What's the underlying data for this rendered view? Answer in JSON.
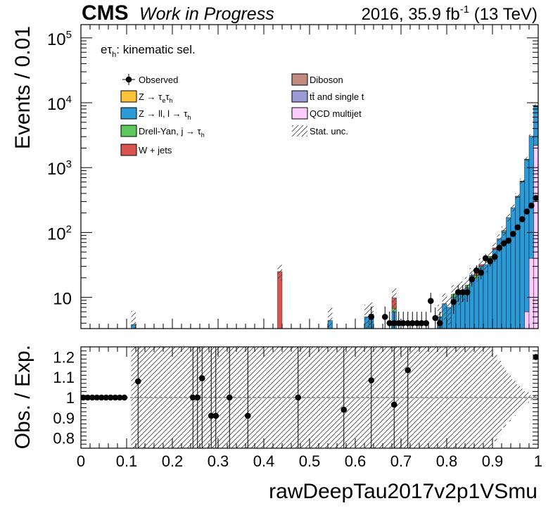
{
  "header": {
    "experiment": "CMS",
    "status": "Work in Progress",
    "lumi_prefix": "2016, 35.9 fb",
    "lumi_exp": "-1",
    "lumi_suffix": "(13 TeV)"
  },
  "chart_data": [
    {
      "type": "bar",
      "subtype": "stacked-histogram",
      "ylabel": "Events / 0.01",
      "yscale": "log",
      "ylim": [
        3.3,
        160000
      ],
      "xlim": [
        0,
        1
      ],
      "annotation": {
        "prefix": "eτ",
        "sub": "h",
        "suffix": ": kinematic sel."
      },
      "y_ticks": [
        {
          "v": 100000,
          "base": "10",
          "exp": "5"
        },
        {
          "v": 10000,
          "base": "10",
          "exp": "4"
        },
        {
          "v": 1000,
          "base": "10",
          "exp": "3"
        },
        {
          "v": 100,
          "base": "10",
          "exp": "2"
        },
        {
          "v": 10,
          "base": "10",
          "exp": ""
        }
      ],
      "legend": [
        {
          "key": "observed",
          "label": "Observed",
          "kind": "marker"
        },
        {
          "key": "ztt",
          "label": "Z → τ",
          "sub1": "e",
          "mid": "τ",
          "sub2": "h",
          "color": "#fdc23a"
        },
        {
          "key": "zll",
          "label": "Z → ll, l → τ",
          "sub2": "h",
          "color": "#2b9ad6"
        },
        {
          "key": "dy",
          "label": "Drell-Yan, j → τ",
          "sub2": "h",
          "color": "#5dc85d"
        },
        {
          "key": "wjets",
          "label": "W + jets",
          "color": "#d9534f"
        },
        {
          "key": "diboson",
          "label": "Diboson",
          "color": "#c28b7f"
        },
        {
          "key": "ttbar",
          "label": "tt̄ and single t",
          "color": "#9a9ad6"
        },
        {
          "key": "qcd",
          "label": "QCD multijet",
          "color": "#ffccff"
        },
        {
          "key": "unc",
          "label": "Stat. unc.",
          "kind": "hatch"
        }
      ],
      "series": [
        {
          "name": "QCD multijet",
          "key": "qcd",
          "bins": [
            [
              0.97,
              6
            ],
            [
              0.98,
              40
            ],
            [
              0.99,
              2200
            ]
          ]
        },
        {
          "name": "Z → ll, l → τ",
          "key": "zll",
          "bins": [
            [
              0.11,
              3.8
            ],
            [
              0.54,
              4.4
            ],
            [
              0.62,
              5
            ],
            [
              0.63,
              5.5
            ],
            [
              0.68,
              6
            ],
            [
              0.78,
              5
            ],
            [
              0.79,
              8
            ],
            [
              0.8,
              7
            ],
            [
              0.81,
              10
            ],
            [
              0.82,
              12
            ],
            [
              0.83,
              13
            ],
            [
              0.84,
              14
            ],
            [
              0.85,
              22
            ],
            [
              0.86,
              20
            ],
            [
              0.87,
              30
            ],
            [
              0.88,
              32
            ],
            [
              0.89,
              40
            ],
            [
              0.9,
              55
            ],
            [
              0.91,
              80
            ],
            [
              0.92,
              100
            ],
            [
              0.93,
              170
            ],
            [
              0.94,
              240
            ],
            [
              0.95,
              350
            ],
            [
              0.96,
              600
            ],
            [
              0.97,
              1300
            ],
            [
              0.98,
              3000
            ],
            [
              0.99,
              6500
            ]
          ]
        },
        {
          "name": "Drell-Yan, j → τ",
          "key": "dy",
          "bins": [
            [
              0.68,
              0.8
            ],
            [
              0.81,
              1.2
            ],
            [
              0.84,
              1.5
            ],
            [
              0.86,
              2
            ],
            [
              0.89,
              3
            ],
            [
              0.92,
              4
            ],
            [
              0.95,
              8
            ],
            [
              0.96,
              12
            ],
            [
              0.97,
              30
            ],
            [
              0.99,
              60
            ]
          ]
        },
        {
          "name": "W + jets",
          "key": "wjets",
          "bins": [
            [
              0.43,
              25
            ],
            [
              0.68,
              3
            ],
            [
              0.86,
              2
            ],
            [
              0.87,
              2
            ],
            [
              0.9,
              3
            ],
            [
              0.96,
              5
            ],
            [
              0.98,
              10
            ],
            [
              0.99,
              50
            ]
          ]
        },
        {
          "name": "tt̄ and single t",
          "key": "ttbar",
          "bins": [
            [
              0.92,
              3
            ],
            [
              0.95,
              5
            ],
            [
              0.97,
              8
            ],
            [
              0.99,
              30
            ]
          ]
        },
        {
          "name": "Diboson",
          "key": "diboson",
          "bins": [
            [
              0.96,
              2
            ],
            [
              0.99,
              15
            ]
          ]
        },
        {
          "name": "Observed",
          "key": "observed",
          "points": [
            [
              0.635,
              5
            ],
            [
              0.665,
              5
            ],
            [
              0.675,
              4
            ],
            [
              0.685,
              4
            ],
            [
              0.695,
              4
            ],
            [
              0.705,
              4
            ],
            [
              0.715,
              4
            ],
            [
              0.725,
              4
            ],
            [
              0.735,
              4
            ],
            [
              0.745,
              4
            ],
            [
              0.755,
              4
            ],
            [
              0.765,
              8.8
            ],
            [
              0.775,
              4.8
            ],
            [
              0.785,
              4
            ],
            [
              0.815,
              8.5
            ],
            [
              0.825,
              12
            ],
            [
              0.835,
              12
            ],
            [
              0.845,
              12
            ],
            [
              0.855,
              19
            ],
            [
              0.865,
              26
            ],
            [
              0.875,
              24
            ],
            [
              0.885,
              40
            ],
            [
              0.895,
              36
            ],
            [
              0.905,
              42
            ],
            [
              0.915,
              58
            ],
            [
              0.925,
              68
            ],
            [
              0.935,
              75
            ],
            [
              0.945,
              95
            ],
            [
              0.955,
              120
            ],
            [
              0.965,
              160
            ],
            [
              0.975,
              210
            ],
            [
              0.985,
              260
            ],
            [
              0.995,
              340
            ]
          ]
        }
      ]
    },
    {
      "type": "scatter",
      "subtype": "ratio",
      "ylabel": "Obs. / Exp.",
      "xlabel": "rawDeepTau2017v2p1VSmu",
      "ylim": [
        0.75,
        1.25
      ],
      "xlim": [
        0,
        1
      ],
      "x_ticks": [
        "0",
        "0.1",
        "0.2",
        "0.3",
        "0.4",
        "0.5",
        "0.6",
        "0.7",
        "0.8",
        "0.9",
        "1"
      ],
      "y_ticks": [
        "1.2",
        "1.1",
        "1",
        "0.9",
        "0.8"
      ],
      "points": [
        [
          0.005,
          1
        ],
        [
          0.015,
          1
        ],
        [
          0.025,
          1
        ],
        [
          0.035,
          1
        ],
        [
          0.045,
          1
        ],
        [
          0.055,
          1
        ],
        [
          0.065,
          1
        ],
        [
          0.075,
          1
        ],
        [
          0.085,
          1
        ],
        [
          0.095,
          1
        ],
        [
          0.125,
          1.08
        ],
        [
          0.245,
          1
        ],
        [
          0.255,
          1
        ],
        [
          0.265,
          1.095
        ],
        [
          0.285,
          0.91
        ],
        [
          0.295,
          0.91
        ],
        [
          0.325,
          1
        ],
        [
          0.365,
          0.91
        ],
        [
          0.475,
          1
        ],
        [
          0.575,
          0.94
        ],
        [
          0.635,
          1.085
        ],
        [
          0.685,
          0.965
        ],
        [
          0.715,
          1.135
        ],
        [
          0.995,
          1.2
        ]
      ]
    }
  ]
}
